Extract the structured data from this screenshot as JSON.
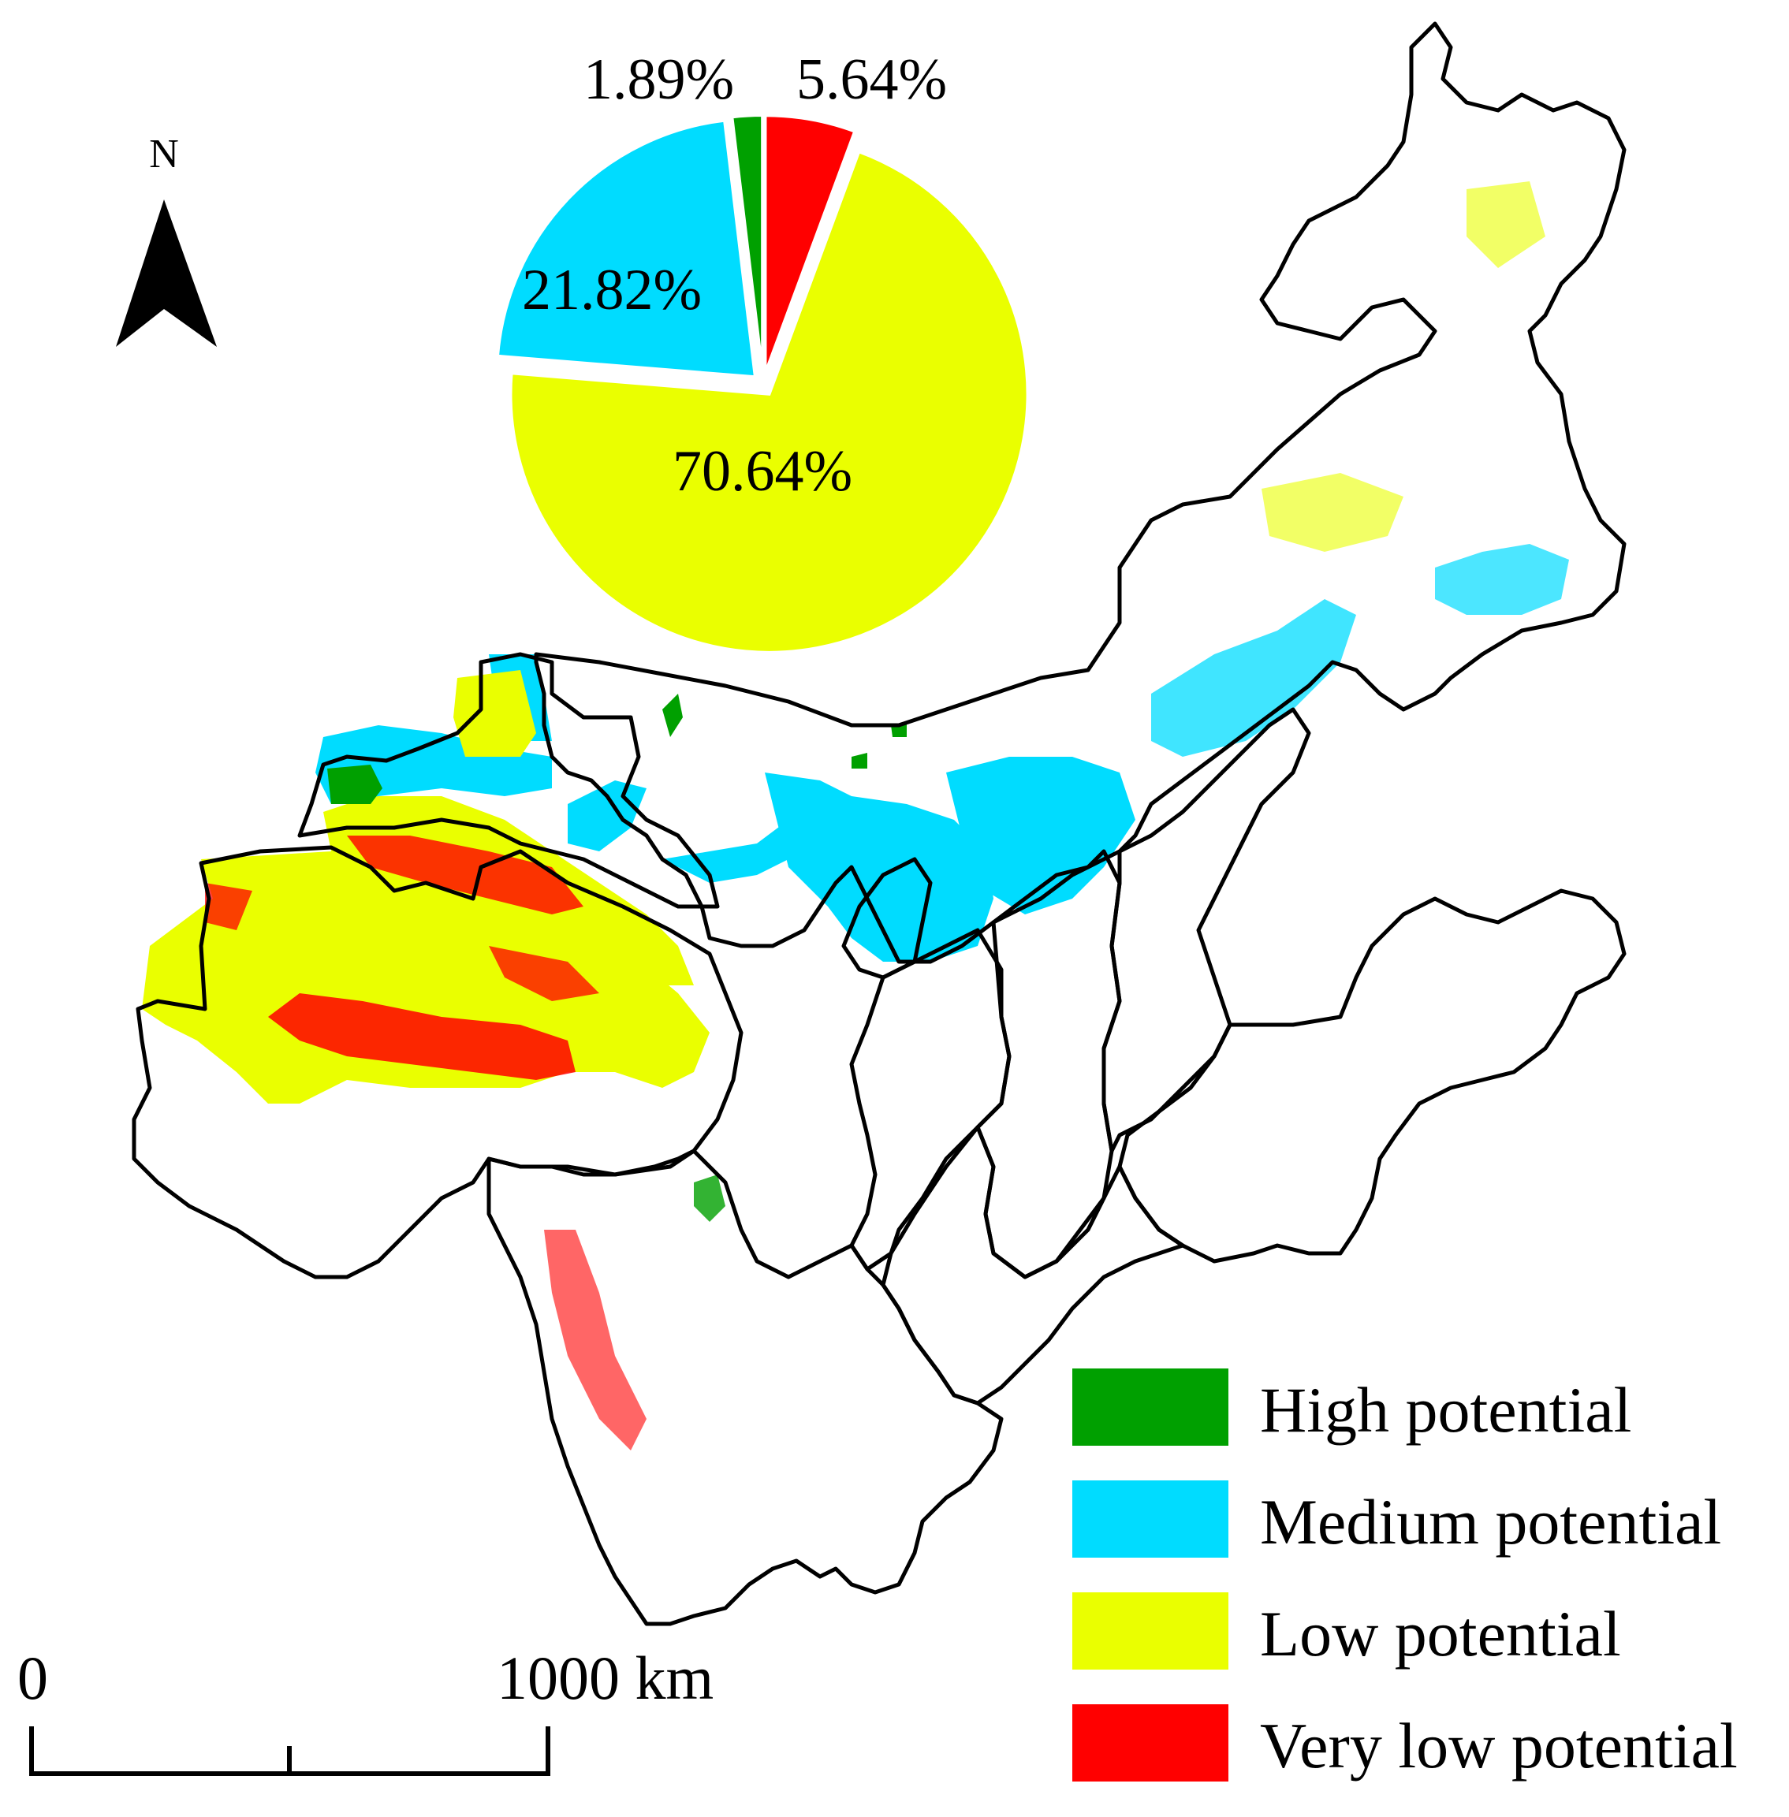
{
  "pie_chart": {
    "type": "pie",
    "slices": [
      {
        "label": "High potential",
        "value": 1.89,
        "label_text": "1.89%",
        "color": "#00a000"
      },
      {
        "label": "Very low potential",
        "value": 5.64,
        "label_text": "5.64%",
        "color": "#ff0000"
      },
      {
        "label": "Low potential",
        "value": 70.64,
        "label_text": "70.64%",
        "color": "#eaff00"
      },
      {
        "label": "Medium potential",
        "value": 21.82,
        "label_text": "21.82%",
        "color": "#00dcff"
      }
    ]
  },
  "north_arrow": {
    "label": "N",
    "icon": "north-arrow-icon"
  },
  "legend": {
    "items": [
      {
        "label": "High potential",
        "color": "#00a000"
      },
      {
        "label": "Medium potential",
        "color": "#00dcff"
      },
      {
        "label": "Low potential",
        "color": "#eaff00"
      },
      {
        "label": "Very low potential",
        "color": "#ff0000"
      }
    ]
  },
  "scale_bar": {
    "start_label": "0",
    "end_label": "1000 km"
  }
}
